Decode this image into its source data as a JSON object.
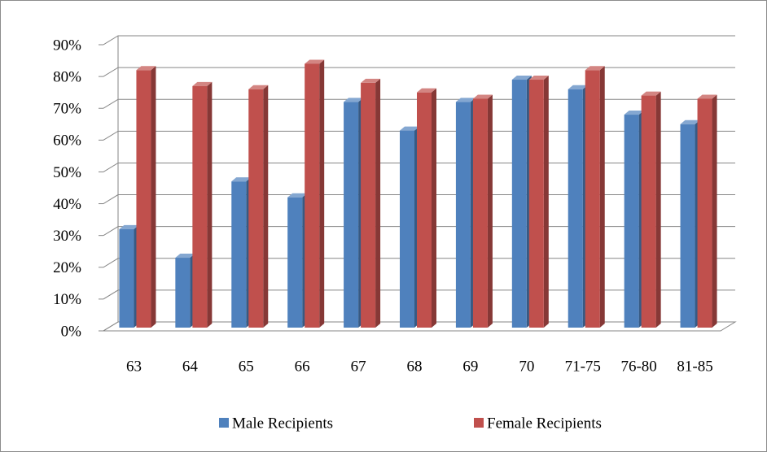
{
  "chart_data": {
    "type": "bar3d",
    "categories": [
      "63",
      "64",
      "65",
      "66",
      "67",
      "68",
      "69",
      "70",
      "71-75",
      "76-80",
      "81-85"
    ],
    "series": [
      {
        "name": "Male Recipients",
        "color": "#4f81bd",
        "values": [
          32,
          23,
          47,
          42,
          72,
          63,
          72,
          79,
          76,
          68,
          65
        ]
      },
      {
        "name": "Female Recipients",
        "color": "#c0504d",
        "values": [
          82,
          77,
          76,
          84,
          78,
          75,
          73,
          79,
          82,
          74,
          73
        ]
      }
    ],
    "ylim": [
      0,
      90
    ],
    "yticks": [
      {
        "value": 0,
        "label": "0%"
      },
      {
        "value": 10,
        "label": "10%"
      },
      {
        "value": 20,
        "label": "20%"
      },
      {
        "value": 30,
        "label": "30%"
      },
      {
        "value": 40,
        "label": "40%"
      },
      {
        "value": 50,
        "label": "50%"
      },
      {
        "value": 60,
        "label": "60%"
      },
      {
        "value": 70,
        "label": "70%"
      },
      {
        "value": 80,
        "label": "80%"
      },
      {
        "value": 90,
        "label": "90%"
      }
    ],
    "grid": true,
    "legend": "bottom"
  }
}
